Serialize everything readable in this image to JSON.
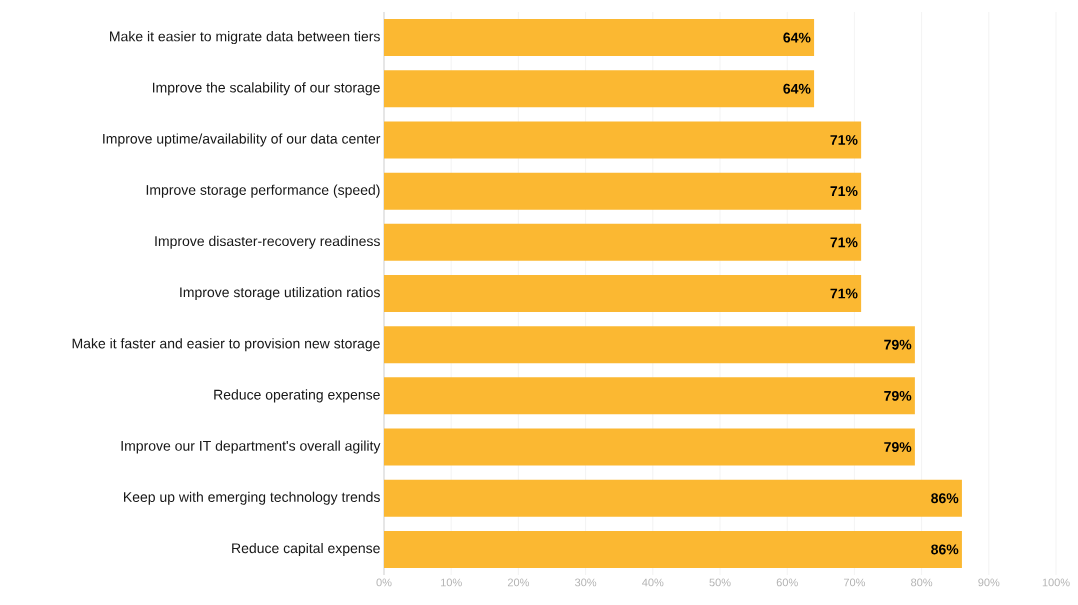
{
  "chart_data": {
    "type": "bar",
    "orientation": "horizontal",
    "categories": [
      "Make it easier to migrate data between tiers",
      "Improve the scalability of our storage",
      "Improve uptime/availability of our data center",
      "Improve storage performance (speed)",
      "Improve disaster-recovery readiness",
      "Improve storage utilization ratios",
      "Make it faster and easier to provision new storage",
      "Reduce operating expense",
      "Improve our IT department's overall agility",
      "Keep up with emerging technology trends",
      "Reduce capital expense"
    ],
    "values": [
      64,
      64,
      71,
      71,
      71,
      71,
      79,
      79,
      79,
      86,
      86
    ],
    "value_labels": [
      "64%",
      "64%",
      "71%",
      "71%",
      "71%",
      "71%",
      "79%",
      "79%",
      "79%",
      "86%",
      "86%"
    ],
    "color": "#fbb832",
    "xlim": [
      0,
      100
    ],
    "xticks": [
      {
        "value": 0,
        "label": "0%"
      },
      {
        "value": 10,
        "label": "10%"
      },
      {
        "value": 20,
        "label": "20%"
      },
      {
        "value": 30,
        "label": "30%"
      },
      {
        "value": 40,
        "label": "40%"
      },
      {
        "value": 50,
        "label": "50%"
      },
      {
        "value": 60,
        "label": "60%"
      },
      {
        "value": 70,
        "label": "70%"
      },
      {
        "value": 80,
        "label": "80%"
      },
      {
        "value": 90,
        "label": "90%"
      },
      {
        "value": 100,
        "label": "100%"
      }
    ],
    "grid": "x"
  }
}
